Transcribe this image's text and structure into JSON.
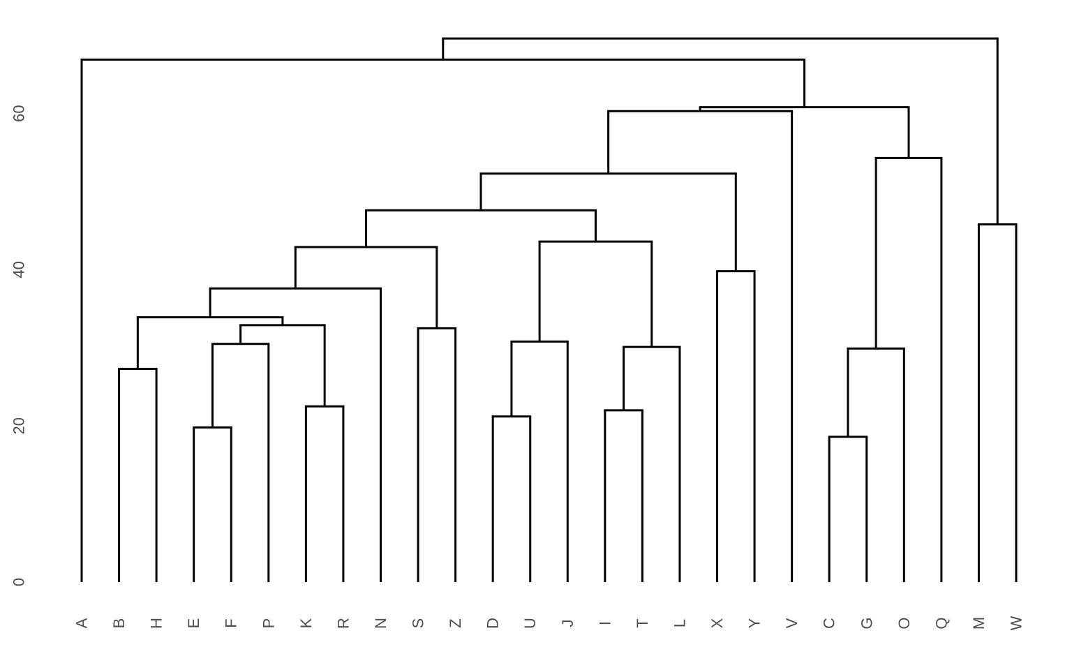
{
  "chart_data": {
    "type": "dendrogram",
    "leaves": [
      "A",
      "B",
      "H",
      "E",
      "F",
      "P",
      "K",
      "R",
      "N",
      "S",
      "Z",
      "D",
      "U",
      "J",
      "I",
      "T",
      "L",
      "X",
      "Y",
      "V",
      "C",
      "G",
      "O",
      "Q",
      "M",
      "W"
    ],
    "y_ticks": [
      0,
      20,
      40,
      60
    ],
    "ylim": [
      0,
      70
    ],
    "grid": false,
    "merges": [
      {
        "a": "B",
        "b": "H",
        "height": 27.3
      },
      {
        "a": "E",
        "b": "F",
        "height": 19.8
      },
      {
        "a": "EF",
        "b": "P",
        "height": 30.5
      },
      {
        "a": "K",
        "b": "R",
        "height": 22.5
      },
      {
        "a": "EFP",
        "b": "KR",
        "height": 32.9
      },
      {
        "a": "BH",
        "b": "EFPKR",
        "height": 33.9
      },
      {
        "a": "BHEFPKR",
        "b": "N",
        "height": 37.6
      },
      {
        "a": "S",
        "b": "Z",
        "height": 32.5
      },
      {
        "a": "BHEFPKRN",
        "b": "SZ",
        "height": 42.9
      },
      {
        "a": "D",
        "b": "U",
        "height": 21.2
      },
      {
        "a": "DU",
        "b": "J",
        "height": 30.8
      },
      {
        "a": "I",
        "b": "T",
        "height": 22.0
      },
      {
        "a": "IT",
        "b": "L",
        "height": 30.1
      },
      {
        "a": "DUJ",
        "b": "ITL",
        "height": 43.6
      },
      {
        "a": "BHEFPKRNSZ",
        "b": "DUJITL",
        "height": 47.6
      },
      {
        "a": "X",
        "b": "Y",
        "height": 39.8
      },
      {
        "a": "BHEFPKRNSZDUJITL",
        "b": "XY",
        "height": 52.3
      },
      {
        "a": "BHEFPKRNSZDUJITLXY",
        "b": "V",
        "height": 60.3
      },
      {
        "a": "C",
        "b": "G",
        "height": 18.6
      },
      {
        "a": "CG",
        "b": "O",
        "height": 29.9
      },
      {
        "a": "CGO",
        "b": "Q",
        "height": 54.3
      },
      {
        "a": "BHEFPKRNSZDUJITLXYV",
        "b": "CGOQ",
        "height": 60.8
      },
      {
        "a": "A",
        "b": "BHEFPKRNSZDUJITLXYVCGOQ",
        "height": 66.9
      },
      {
        "a": "M",
        "b": "W",
        "height": 45.8
      },
      {
        "a": "ABHEFPKRNSZDUJITLXYVCGOQ",
        "b": "MW",
        "height": 69.6
      }
    ]
  }
}
